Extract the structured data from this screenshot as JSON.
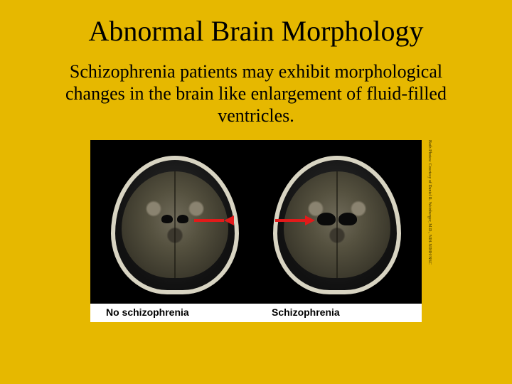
{
  "title": "Abnormal Brain Morphology",
  "body": "Schizophrenia patients may exhibit morphological changes in the brain like enlargement of fluid-filled ventricles.",
  "figure": {
    "panels": [
      {
        "caption": "No schizophrenia",
        "arrow_color": "#e21a1a",
        "arrow_side": "right",
        "ventricle_size": "small"
      },
      {
        "caption": "Schizophrenia",
        "arrow_color": "#e21a1a",
        "arrow_side": "left",
        "ventricle_size": "large"
      }
    ],
    "credit": "Both Photos: Courtesy of Daniel R. Weinberger, M.D., NIH-NIMH/NSC",
    "background": "#000000",
    "caption_bg": "#ffffff",
    "caption_font": "Arial",
    "caption_fontsize": 14,
    "skull_border_color": "#d8d4c2",
    "brain_base_color": "#6f6a59"
  },
  "slide": {
    "background": "#e6b800",
    "title_fontsize": 40,
    "body_fontsize": 26,
    "font_family": "Book Antiqua / Palatino"
  }
}
